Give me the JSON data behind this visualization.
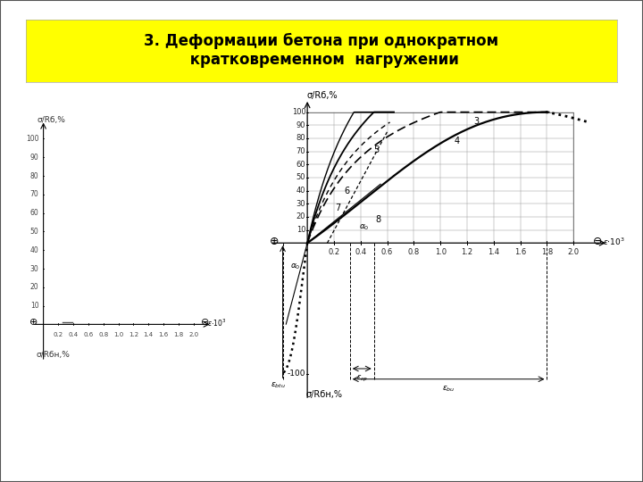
{
  "title": "3. Деформации бетона при однократном\n кратковременном  нагружении",
  "title_bg": "#ffff00",
  "bg_color": "#ffffff",
  "border_color": "#000000",
  "left_plot": {
    "ylabel": "σ/Rб,%",
    "ylabel_bottom": "σ/Rбн,%",
    "yticks": [
      10,
      20,
      30,
      40,
      50,
      60,
      70,
      80,
      90,
      100
    ],
    "xticks": [
      0.2,
      0.4,
      0.6,
      0.8,
      1.0,
      1.2,
      1.4,
      1.6,
      1.8,
      2.0
    ],
    "ylim": [
      -20,
      115
    ],
    "xlim": [
      -0.15,
      2.25
    ]
  },
  "right_plot": {
    "ylabel": "σ/Rб,%",
    "ylabel_bottom": "σ/Rбн,%",
    "yticks": [
      10,
      20,
      30,
      40,
      50,
      60,
      70,
      80,
      90,
      100
    ],
    "xticks": [
      0.2,
      0.4,
      0.6,
      0.8,
      1.0,
      1.2,
      1.4,
      1.6,
      1.8,
      2.0
    ],
    "ylim": [
      -120,
      112
    ],
    "xlim": [
      -0.28,
      2.28
    ],
    "minus100": "-100"
  }
}
